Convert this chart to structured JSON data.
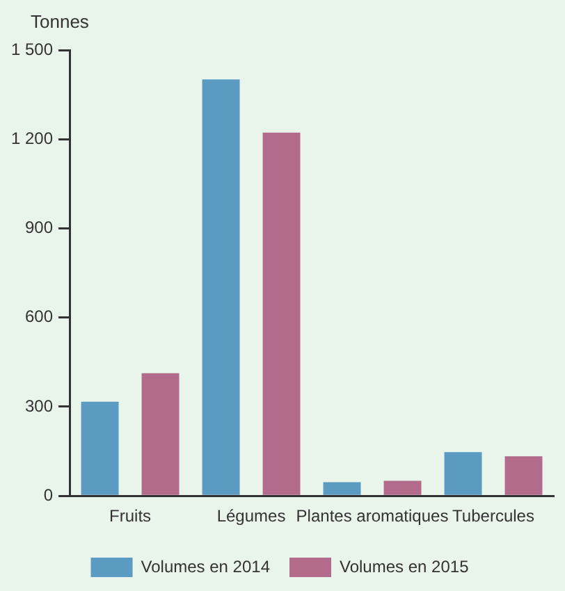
{
  "chart_data": {
    "type": "bar",
    "ylabel": "Tonnes",
    "categories": [
      "Fruits",
      "Légumes",
      "Plantes aromatiques",
      "Tubercules"
    ],
    "series": [
      {
        "name": "Volumes en 2014",
        "color": "#5b9bc2",
        "values": [
          317,
          1401,
          46,
          147
        ]
      },
      {
        "name": "Volumes en 2015",
        "color": "#b36b8c",
        "values": [
          413,
          1222,
          51,
          133
        ]
      }
    ],
    "ylim": [
      0,
      1500
    ],
    "yticks": [
      0,
      300,
      600,
      900,
      {
        "value": 1200,
        "label": "1 200"
      },
      {
        "value": 1500,
        "label": "1 500"
      }
    ],
    "grid": false,
    "legend": "bottom"
  }
}
